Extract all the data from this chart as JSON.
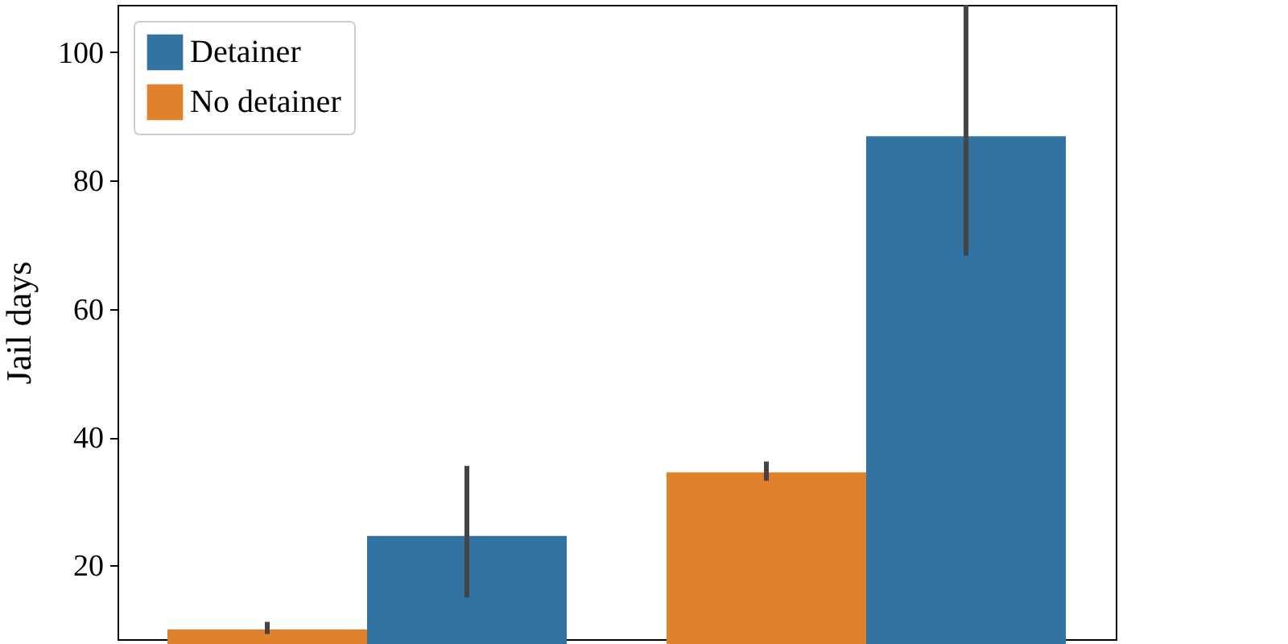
{
  "chart_data": {
    "type": "bar",
    "ylabel": "Jail days",
    "categories": [
      null,
      null
    ],
    "series": [
      {
        "name": "Detainer",
        "color": "#3274a1",
        "values": [
          24.6,
          86.9
        ],
        "errors": [
          [
            15.0,
            35.5
          ],
          [
            68.3,
            107.4
          ]
        ]
      },
      {
        "name": "No detainer",
        "color": "#e1812c",
        "values": [
          10.0,
          34.5
        ],
        "errors": [
          [
            9.3,
            11.2
          ],
          [
            33.2,
            36.2
          ]
        ]
      }
    ],
    "ylim": [
      8.5,
      107.4
    ],
    "yticks": [
      20,
      40,
      60,
      80,
      100
    ],
    "legend": "top left",
    "grid": false
  }
}
